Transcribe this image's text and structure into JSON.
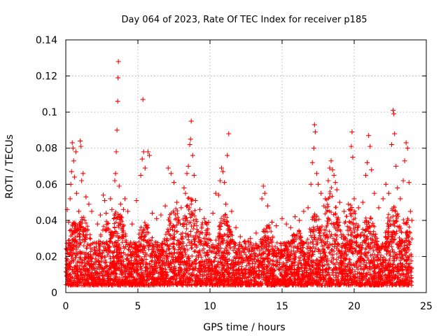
{
  "chart_data": {
    "type": "scatter",
    "title": "Day 064 of 2023, Rate Of TEC Index for receiver p185",
    "xlabel": "GPS time / hours",
    "ylabel": "ROTI / TECUs",
    "xlim": [
      0,
      25
    ],
    "ylim": [
      0,
      0.14
    ],
    "x_ticks": [
      0,
      5,
      10,
      15,
      20,
      25
    ],
    "y_ticks": [
      0,
      0.02,
      0.04,
      0.06,
      0.08,
      0.1,
      0.12,
      0.14
    ],
    "x_tick_labels": [
      "0",
      "5",
      "10",
      "15",
      "20",
      "25"
    ],
    "y_tick_labels": [
      "0",
      "0.02",
      "0.04",
      "0.06",
      "0.08",
      "0.1",
      "0.12",
      "0.14"
    ],
    "grid": true,
    "marker": "plus",
    "color": "#ff0000",
    "series": [
      {
        "points": [
          [
            0.1,
            0.046
          ],
          [
            0.2,
            0.039
          ],
          [
            0.3,
            0.052
          ],
          [
            0.35,
            0.06
          ],
          [
            0.4,
            0.067
          ],
          [
            0.45,
            0.083
          ],
          [
            0.5,
            0.08
          ],
          [
            0.55,
            0.073
          ],
          [
            0.6,
            0.064
          ],
          [
            0.7,
            0.078
          ],
          [
            0.75,
            0.055
          ],
          [
            0.9,
            0.045
          ],
          [
            1.0,
            0.084
          ],
          [
            1.05,
            0.081
          ],
          [
            1.1,
            0.062
          ],
          [
            1.2,
            0.066
          ],
          [
            1.4,
            0.053
          ],
          [
            1.6,
            0.049
          ],
          [
            1.8,
            0.045
          ],
          [
            2.2,
            0.038
          ],
          [
            2.4,
            0.043
          ],
          [
            2.6,
            0.054
          ],
          [
            2.7,
            0.051
          ],
          [
            2.8,
            0.044
          ],
          [
            3.1,
            0.052
          ],
          [
            3.2,
            0.046
          ],
          [
            3.4,
            0.062
          ],
          [
            3.45,
            0.066
          ],
          [
            3.5,
            0.078
          ],
          [
            3.55,
            0.09
          ],
          [
            3.6,
            0.106
          ],
          [
            3.62,
            0.119
          ],
          [
            3.65,
            0.128
          ],
          [
            3.7,
            0.059
          ],
          [
            3.8,
            0.049
          ],
          [
            4.0,
            0.046
          ],
          [
            4.1,
            0.052
          ],
          [
            4.3,
            0.045
          ],
          [
            4.6,
            0.038
          ],
          [
            4.9,
            0.051
          ],
          [
            5.2,
            0.065
          ],
          [
            5.3,
            0.074
          ],
          [
            5.35,
            0.107
          ],
          [
            5.4,
            0.078
          ],
          [
            5.5,
            0.069
          ],
          [
            5.7,
            0.078
          ],
          [
            5.8,
            0.076
          ],
          [
            6.0,
            0.044
          ],
          [
            6.3,
            0.041
          ],
          [
            6.6,
            0.043
          ],
          [
            6.9,
            0.048
          ],
          [
            7.1,
            0.069
          ],
          [
            7.3,
            0.066
          ],
          [
            7.5,
            0.061
          ],
          [
            7.7,
            0.05
          ],
          [
            8.0,
            0.047
          ],
          [
            8.2,
            0.058
          ],
          [
            8.3,
            0.055
          ],
          [
            8.4,
            0.066
          ],
          [
            8.5,
            0.07
          ],
          [
            8.6,
            0.082
          ],
          [
            8.65,
            0.085
          ],
          [
            8.7,
            0.095
          ],
          [
            8.8,
            0.076
          ],
          [
            8.9,
            0.065
          ],
          [
            9.0,
            0.051
          ],
          [
            9.3,
            0.046
          ],
          [
            9.6,
            0.041
          ],
          [
            9.9,
            0.039
          ],
          [
            10.2,
            0.044
          ],
          [
            10.4,
            0.055
          ],
          [
            10.6,
            0.054
          ],
          [
            10.7,
            0.062
          ],
          [
            10.8,
            0.069
          ],
          [
            10.9,
            0.067
          ],
          [
            11.0,
            0.061
          ],
          [
            11.1,
            0.049
          ],
          [
            11.2,
            0.076
          ],
          [
            11.3,
            0.088
          ],
          [
            11.5,
            0.045
          ],
          [
            11.8,
            0.036
          ],
          [
            12.1,
            0.031
          ],
          [
            12.4,
            0.028
          ],
          [
            12.8,
            0.03
          ],
          [
            13.2,
            0.033
          ],
          [
            13.6,
            0.052
          ],
          [
            13.7,
            0.059
          ],
          [
            13.8,
            0.055
          ],
          [
            14.0,
            0.048
          ],
          [
            14.3,
            0.039
          ],
          [
            14.6,
            0.037
          ],
          [
            15.0,
            0.041
          ],
          [
            15.3,
            0.038
          ],
          [
            15.6,
            0.036
          ],
          [
            15.9,
            0.042
          ],
          [
            16.2,
            0.04
          ],
          [
            16.5,
            0.045
          ],
          [
            16.8,
            0.047
          ],
          [
            17.0,
            0.06
          ],
          [
            17.1,
            0.072
          ],
          [
            17.2,
            0.08
          ],
          [
            17.25,
            0.093
          ],
          [
            17.3,
            0.089
          ],
          [
            17.4,
            0.066
          ],
          [
            17.5,
            0.06
          ],
          [
            17.7,
            0.055
          ],
          [
            17.9,
            0.048
          ],
          [
            18.0,
            0.052
          ],
          [
            18.2,
            0.062
          ],
          [
            18.3,
            0.069
          ],
          [
            18.4,
            0.073
          ],
          [
            18.5,
            0.068
          ],
          [
            18.6,
            0.065
          ],
          [
            18.7,
            0.061
          ],
          [
            18.8,
            0.057
          ],
          [
            19.0,
            0.05
          ],
          [
            19.3,
            0.045
          ],
          [
            19.6,
            0.049
          ],
          [
            19.8,
            0.081
          ],
          [
            19.85,
            0.089
          ],
          [
            19.9,
            0.075
          ],
          [
            20.0,
            0.052
          ],
          [
            20.3,
            0.047
          ],
          [
            20.6,
            0.05
          ],
          [
            20.8,
            0.065
          ],
          [
            20.9,
            0.072
          ],
          [
            21.0,
            0.087
          ],
          [
            21.1,
            0.081
          ],
          [
            21.2,
            0.068
          ],
          [
            21.4,
            0.055
          ],
          [
            21.7,
            0.047
          ],
          [
            22.0,
            0.052
          ],
          [
            22.2,
            0.06
          ],
          [
            22.4,
            0.055
          ],
          [
            22.6,
            0.082
          ],
          [
            22.7,
            0.101
          ],
          [
            22.75,
            0.099
          ],
          [
            22.8,
            0.088
          ],
          [
            22.9,
            0.07
          ],
          [
            23.0,
            0.058
          ],
          [
            23.2,
            0.052
          ],
          [
            23.4,
            0.062
          ],
          [
            23.5,
            0.073
          ],
          [
            23.6,
            0.083
          ],
          [
            23.7,
            0.08
          ],
          [
            23.8,
            0.061
          ],
          [
            23.9,
            0.045
          ],
          [
            24.0,
            0.04
          ]
        ]
      }
    ]
  }
}
